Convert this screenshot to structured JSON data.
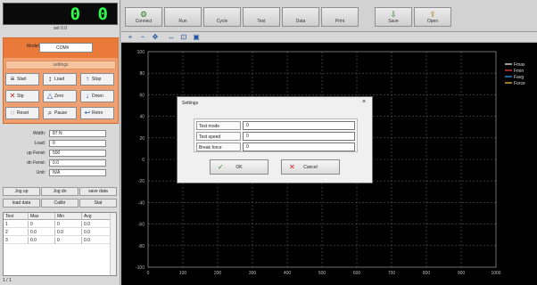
{
  "lcd": {
    "reading": "0 0",
    "sub": "set 0.0"
  },
  "mode": {
    "label": "Model",
    "value": "COM#"
  },
  "orange_header": "settings",
  "control_buttons": [
    {
      "label": "Start",
      "icon": "≡"
    },
    {
      "label": "Load",
      "icon": "↕"
    },
    {
      "label": "Stop",
      "icon": "↑"
    },
    {
      "label": "Stp",
      "icon": "✕"
    },
    {
      "label": "Zero",
      "icon": "△"
    },
    {
      "label": "Down",
      "icon": "↓"
    },
    {
      "label": "Reset",
      "icon": "◌"
    },
    {
      "label": "Pause",
      "icon": "⌕"
    },
    {
      "label": "Retrn",
      "icon": "↩"
    }
  ],
  "fields": [
    {
      "label": "Width:",
      "value": "87 N"
    },
    {
      "label": "Load:",
      "value": "0"
    },
    {
      "label": "up Fenst:",
      "value": "500"
    },
    {
      "label": "dn Fenst:",
      "value": "0.0"
    },
    {
      "label": "Unit:",
      "value": "N/A"
    }
  ],
  "grid_buttons": [
    [
      "Jog up",
      "Jog dn",
      "save data"
    ],
    [
      "load data",
      "Calibr",
      "Stat"
    ]
  ],
  "table": {
    "headers": [
      "Test",
      "Max",
      "Min",
      "Avg"
    ],
    "rows": [
      [
        "1",
        "0",
        "0",
        "0.0"
      ],
      [
        "2",
        "0.0",
        "0.0",
        "0.0"
      ],
      [
        "3",
        "0.0",
        "0",
        "0.0"
      ]
    ]
  },
  "status_text": "1 / 1",
  "toolbar": [
    "Connect",
    "Run",
    "Cycle",
    "Test",
    "Data",
    "Print",
    "Save",
    "Open"
  ],
  "zoom_icons": [
    "zoom-in-icon",
    "zoom-out-icon",
    "pan-icon",
    "fit-icon",
    "save-icon"
  ],
  "chart_data": {
    "type": "line",
    "x_ticks": [
      "0",
      "100",
      "200",
      "300",
      "400",
      "500",
      "600",
      "700",
      "800",
      "900",
      "1000"
    ],
    "y_ticks": [
      "100",
      "80",
      "60",
      "40",
      "20",
      "0",
      "-20",
      "-40",
      "-60",
      "-80",
      "-100"
    ],
    "legend": [
      "Fmax",
      "Fmin",
      "Favg",
      "Force"
    ],
    "legend_colors": [
      "#ffffff",
      "#ff4040",
      "#40a0ff",
      "#ffd040"
    ],
    "series": [],
    "grid": true,
    "grid_color": "#5a5a5a",
    "legend_placement": "top-right"
  },
  "dialog": {
    "title": "Settings",
    "rows": [
      {
        "label": "Test mode",
        "value": "0"
      },
      {
        "label": "Test speed",
        "value": "0"
      },
      {
        "label": "Break force",
        "value": "0"
      }
    ],
    "ok_label": "OK",
    "cancel_label": "Cancel"
  }
}
